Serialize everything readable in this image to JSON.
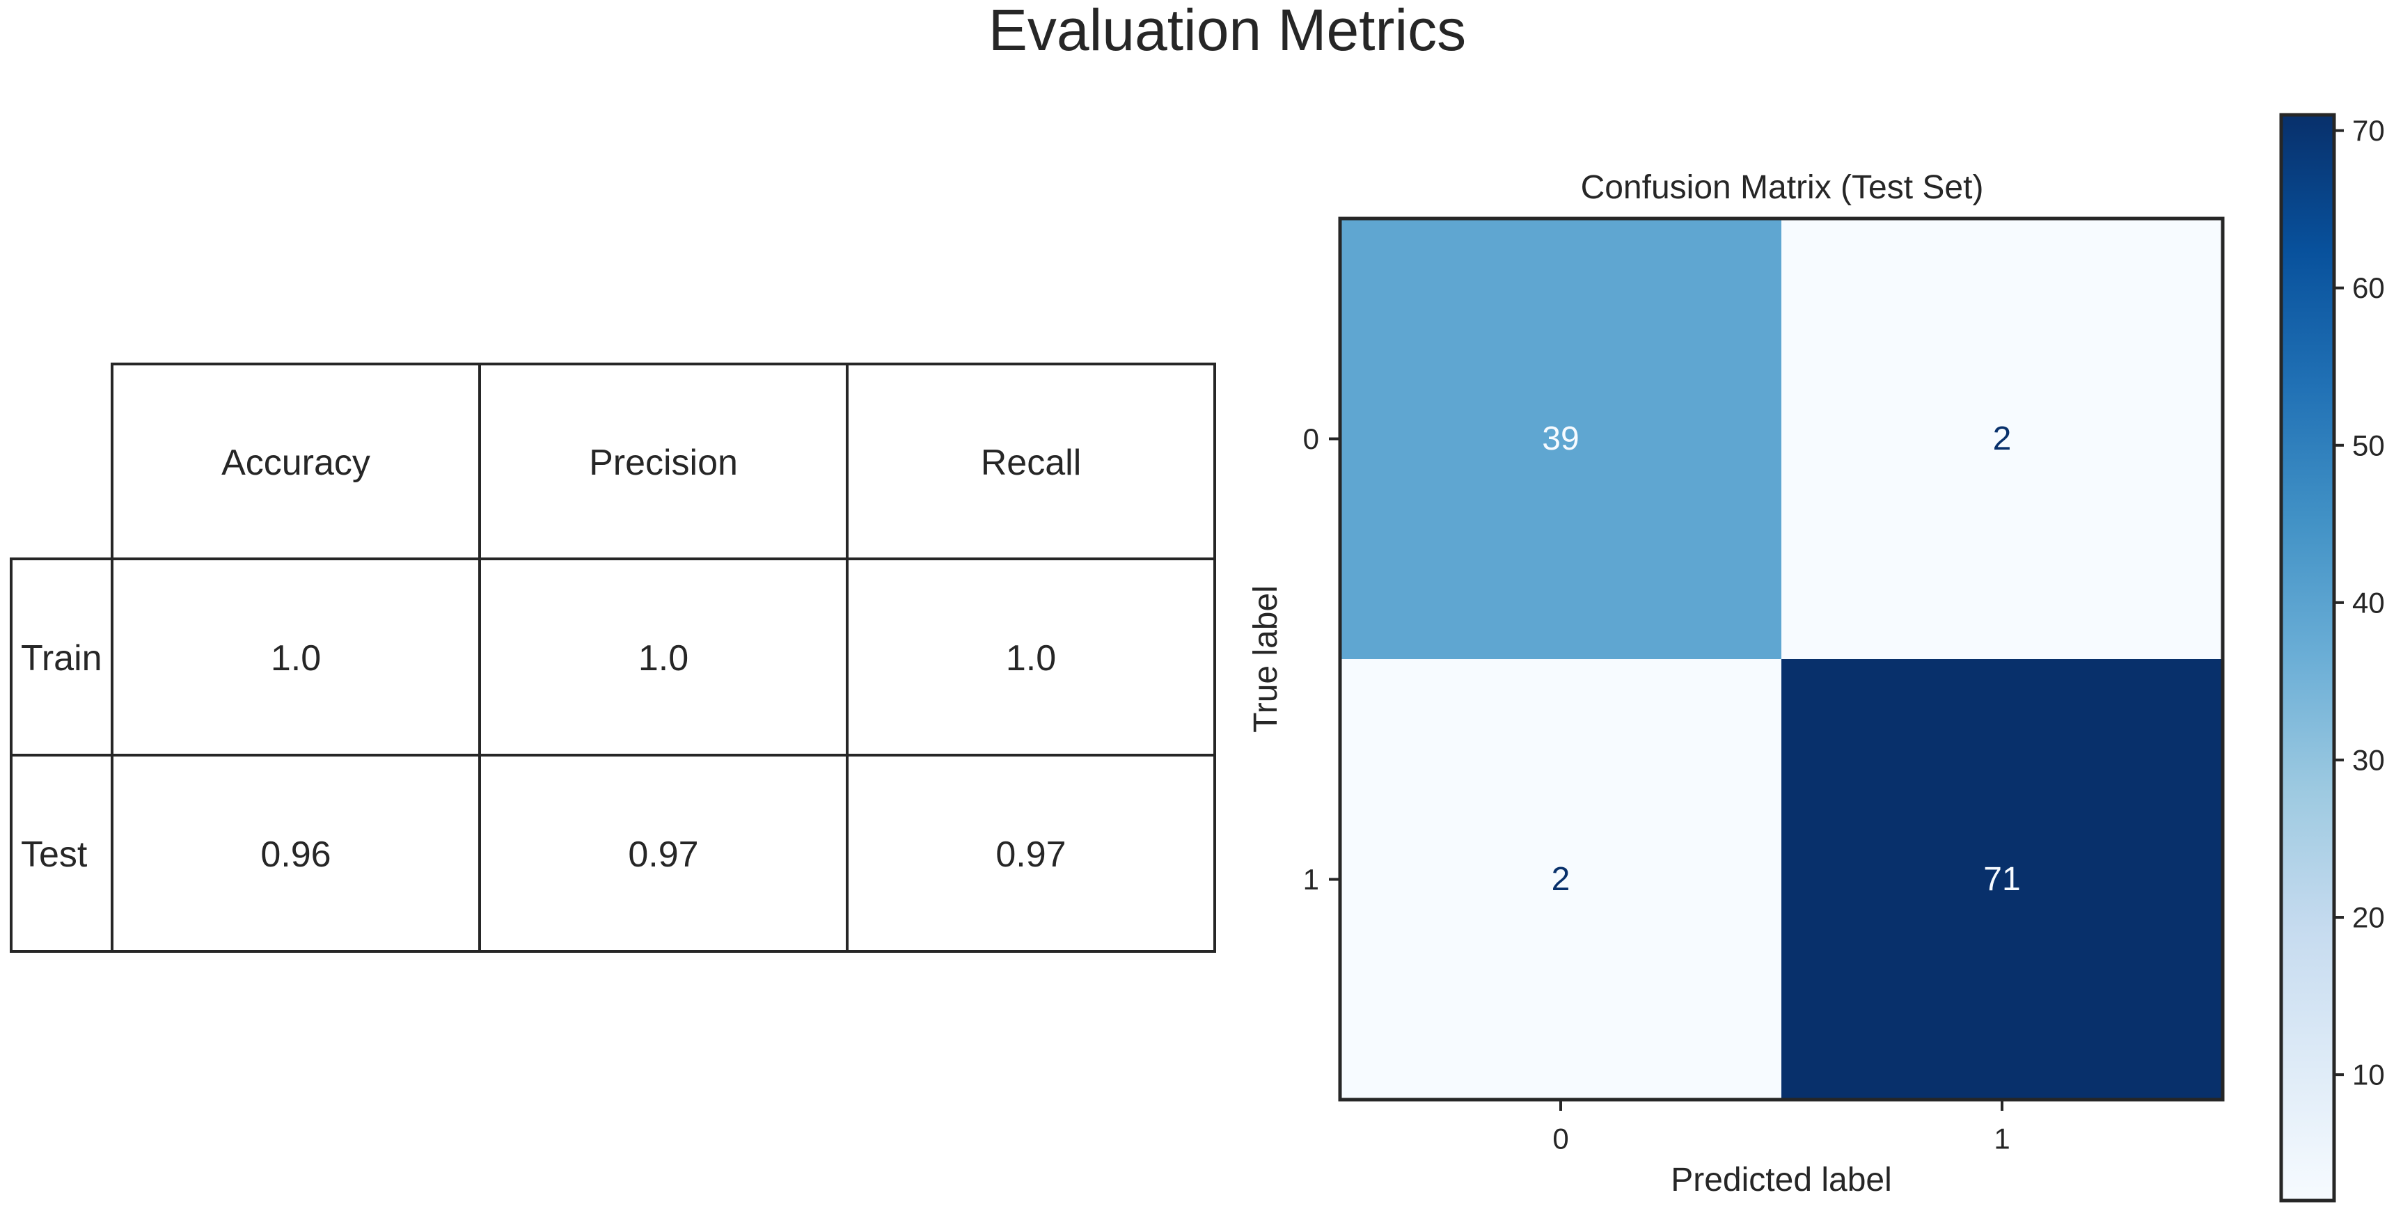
{
  "figure": {
    "title": "Evaluation Metrics"
  },
  "chart_data": [
    {
      "type": "table",
      "columns": [
        "Accuracy",
        "Precision",
        "Recall"
      ],
      "rows": [
        {
          "label": "Train",
          "values": [
            "1.0",
            "1.0",
            "1.0"
          ]
        },
        {
          "label": "Test",
          "values": [
            "0.96",
            "0.97",
            "0.97"
          ]
        }
      ]
    },
    {
      "type": "heatmap",
      "title": "Confusion Matrix (Test Set)",
      "xlabel": "Predicted label",
      "ylabel": "True label",
      "x_categories": [
        "0",
        "1"
      ],
      "y_categories": [
        "0",
        "1"
      ],
      "values": [
        [
          39,
          2
        ],
        [
          2,
          71
        ]
      ],
      "colormap": "Blues",
      "colorbar": {
        "range": [
          2,
          71
        ],
        "ticks": [
          10,
          20,
          30,
          40,
          50,
          60,
          70
        ]
      }
    }
  ]
}
